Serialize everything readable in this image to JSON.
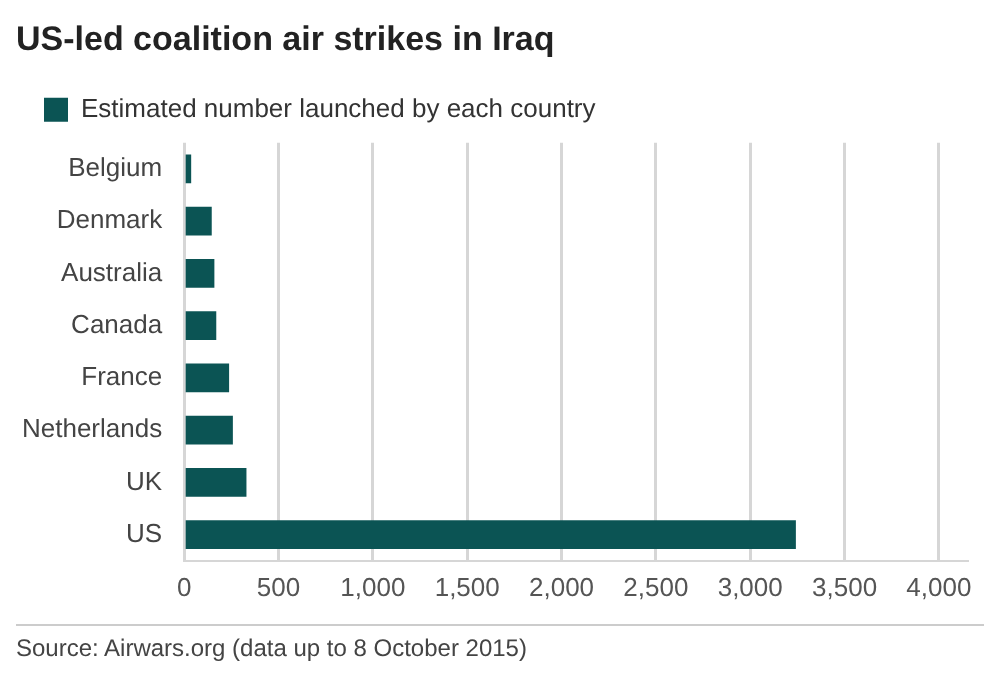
{
  "chart_data": {
    "type": "bar",
    "orientation": "horizontal",
    "title": "US-led coalition air strikes in Iraq",
    "categories": [
      "Belgium",
      "Denmark",
      "Australia",
      "Canada",
      "France",
      "Netherlands",
      "UK",
      "US"
    ],
    "series": [
      {
        "name": "Estimated number launched by each country",
        "color": "#0b5454",
        "values": [
          37,
          146,
          160,
          170,
          238,
          258,
          330,
          3242
        ]
      }
    ],
    "xlim": [
      0,
      4150
    ],
    "xticks": [
      0,
      500,
      {
        "value": 1000,
        "label": "1,000"
      },
      {
        "value": 1500,
        "label": "1,500"
      },
      {
        "value": 2000,
        "label": "2,000"
      },
      {
        "value": 2500,
        "label": "2,500"
      },
      {
        "value": 3000,
        "label": "3,000"
      },
      {
        "value": 3500,
        "label": "3,500"
      },
      {
        "value": 4000,
        "label": "4,000"
      }
    ],
    "grid": "x",
    "legend": "top left",
    "annotations": [
      "Source: Airwars.org (data up to 8 October 2015)"
    ]
  }
}
